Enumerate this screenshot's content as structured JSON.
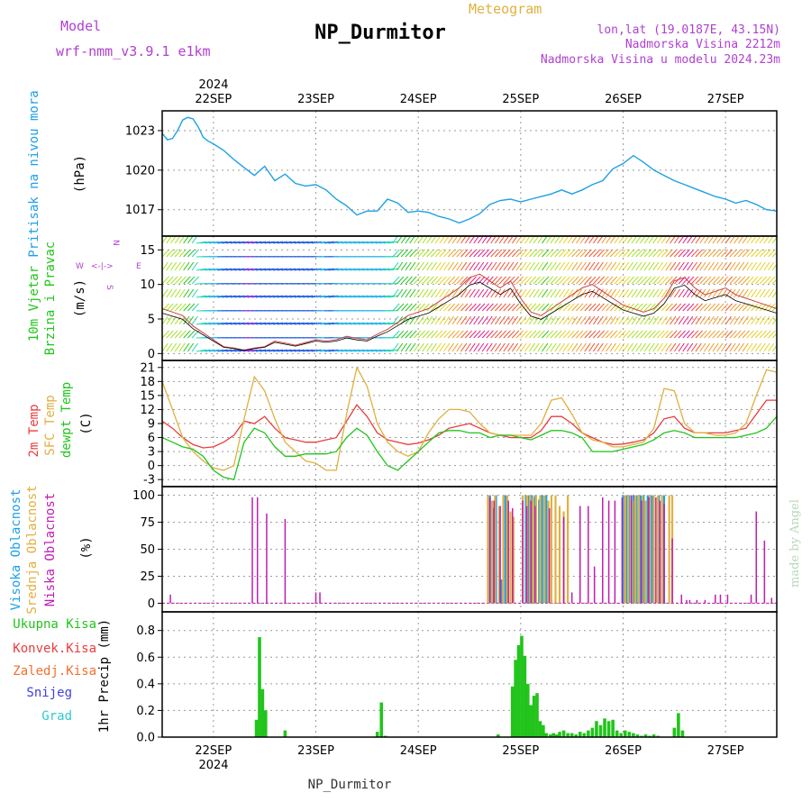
{
  "header": {
    "model_label": "Model",
    "model_name": "wrf-nmm_v3.9.1 e1km",
    "station": "NP_Durmitor",
    "meteogram": "Meteogram",
    "lonlat": "lon,lat (19.0187E, 43.15N)",
    "altitude": "Nadmorska Visina 2212m",
    "altitude_model": "Nadmorska Visina u modelu 2024.23m",
    "footer_station": "NP_Durmitor",
    "watermark": "made by Angel",
    "year": "2024",
    "colors": {
      "purple": "#b040d0",
      "gold": "#e0b040"
    }
  },
  "chart_data": [
    {
      "type": "line",
      "panel": "pressure",
      "ylabel": "Pritisak na nivou mora",
      "unit": "(hPa)",
      "x_categories": [
        "22SEP",
        "23SEP",
        "24SEP",
        "25SEP",
        "26SEP",
        "27SEP"
      ],
      "x_range": [
        -0.5,
        5.5
      ],
      "ylim": [
        1015.0,
        1024.5
      ],
      "yticks": [
        1017,
        1020,
        1023
      ],
      "series": [
        {
          "color": "#1ea0e6",
          "x": [
            -0.5,
            -0.45,
            -0.4,
            -0.35,
            -0.3,
            -0.25,
            -0.2,
            -0.15,
            -0.1,
            -0.05,
            0.0,
            0.1,
            0.2,
            0.3,
            0.4,
            0.5,
            0.6,
            0.7,
            0.8,
            0.9,
            1.0,
            1.1,
            1.2,
            1.3,
            1.4,
            1.5,
            1.6,
            1.7,
            1.8,
            1.9,
            2.0,
            2.1,
            2.2,
            2.3,
            2.4,
            2.5,
            2.6,
            2.7,
            2.8,
            2.9,
            3.0,
            3.1,
            3.2,
            3.3,
            3.4,
            3.5,
            3.6,
            3.7,
            3.8,
            3.9,
            4.0,
            4.1,
            4.2,
            4.3,
            4.4,
            4.5,
            4.6,
            4.7,
            4.8,
            4.9,
            5.0,
            5.1,
            5.2,
            5.3,
            5.4,
            5.5
          ],
          "values": [
            1022.8,
            1022.3,
            1022.4,
            1023.0,
            1023.8,
            1024.0,
            1023.9,
            1023.3,
            1022.5,
            1022.2,
            1022.0,
            1021.5,
            1020.8,
            1020.2,
            1019.6,
            1020.3,
            1019.2,
            1019.7,
            1019.0,
            1018.8,
            1018.9,
            1018.5,
            1017.8,
            1017.3,
            1016.6,
            1016.9,
            1016.9,
            1017.8,
            1017.5,
            1016.8,
            1016.9,
            1016.8,
            1016.5,
            1016.3,
            1016.0,
            1016.3,
            1016.7,
            1017.4,
            1017.7,
            1017.8,
            1017.6,
            1017.8,
            1018.0,
            1018.2,
            1018.5,
            1018.2,
            1018.5,
            1018.9,
            1019.2,
            1020.1,
            1020.5,
            1021.1,
            1020.6,
            1020.0,
            1019.6,
            1019.2,
            1018.9,
            1018.6,
            1018.3,
            1018.0,
            1017.8,
            1017.5,
            1017.7,
            1017.4,
            1017.0,
            1016.9
          ]
        }
      ]
    },
    {
      "type": "line",
      "panel": "wind",
      "ylabel": "10m Vjetar Brzina i Pravac",
      "unit": "(m/s)",
      "compass": [
        "N",
        "E",
        "S",
        "W"
      ],
      "ylim": [
        -1,
        17
      ],
      "yticks": [
        0,
        5,
        10,
        15
      ],
      "series": [
        {
          "name": "speed",
          "color": "#e05050",
          "x": [
            -0.5,
            -0.4,
            -0.3,
            -0.2,
            -0.1,
            0.0,
            0.1,
            0.2,
            0.3,
            0.4,
            0.5,
            0.6,
            0.7,
            0.8,
            0.9,
            1.0,
            1.1,
            1.2,
            1.3,
            1.4,
            1.5,
            1.6,
            1.7,
            1.8,
            1.9,
            2.0,
            2.1,
            2.2,
            2.3,
            2.4,
            2.5,
            2.6,
            2.7,
            2.8,
            2.9,
            3.0,
            3.1,
            3.2,
            3.3,
            3.4,
            3.5,
            3.6,
            3.7,
            3.8,
            3.9,
            4.0,
            4.1,
            4.2,
            4.3,
            4.4,
            4.5,
            4.6,
            4.7,
            4.8,
            4.9,
            5.0,
            5.1,
            5.2,
            5.3,
            5.4,
            5.5
          ],
          "values": [
            6.5,
            6.0,
            5.5,
            4.0,
            3.0,
            2.0,
            1.0,
            0.8,
            0.5,
            0.8,
            1.0,
            1.8,
            1.5,
            1.2,
            1.6,
            2.0,
            1.8,
            2.0,
            2.5,
            2.2,
            2.0,
            2.8,
            3.5,
            4.5,
            5.5,
            6.0,
            6.5,
            7.5,
            8.5,
            9.5,
            11.0,
            11.5,
            10.5,
            9.5,
            10.5,
            8.0,
            6.0,
            5.5,
            6.5,
            7.5,
            8.5,
            9.5,
            10.0,
            9.0,
            8.0,
            7.0,
            6.5,
            6.0,
            6.5,
            8.0,
            10.5,
            11.0,
            9.5,
            8.5,
            9.0,
            9.5,
            8.5,
            8.0,
            7.5,
            7.0,
            6.5
          ]
        }
      ]
    },
    {
      "type": "line",
      "panel": "temperature",
      "ylabel": "2m Temp / SFC Temp / dewpt Temp",
      "unit": "(C)",
      "ylim": [
        -4.5,
        22.5
      ],
      "yticks": [
        -3,
        0,
        3,
        6,
        9,
        12,
        15,
        18,
        21
      ],
      "x": [
        -0.5,
        -0.4,
        -0.3,
        -0.2,
        -0.1,
        0.0,
        0.1,
        0.2,
        0.3,
        0.4,
        0.5,
        0.6,
        0.7,
        0.8,
        0.9,
        1.0,
        1.1,
        1.2,
        1.3,
        1.4,
        1.5,
        1.6,
        1.7,
        1.8,
        1.9,
        2.0,
        2.1,
        2.2,
        2.3,
        2.4,
        2.5,
        2.6,
        2.7,
        2.8,
        2.9,
        3.0,
        3.1,
        3.2,
        3.3,
        3.4,
        3.5,
        3.6,
        3.7,
        3.8,
        3.9,
        4.0,
        4.1,
        4.2,
        4.3,
        4.4,
        4.5,
        4.6,
        4.7,
        4.8,
        4.9,
        5.0,
        5.1,
        5.2,
        5.3,
        5.4,
        5.5
      ],
      "series": [
        {
          "name": "2m Temp",
          "color": "#e83c3c",
          "values": [
            9.5,
            8.0,
            6.0,
            4.5,
            3.8,
            4.0,
            5.0,
            6.5,
            9.5,
            9.0,
            10.5,
            8.0,
            6.0,
            5.5,
            5.0,
            5.0,
            5.5,
            6.0,
            9.5,
            13.0,
            10.5,
            7.0,
            5.5,
            5.0,
            4.5,
            4.8,
            5.5,
            6.5,
            8.0,
            8.5,
            9.0,
            8.0,
            7.0,
            6.5,
            6.0,
            6.0,
            6.0,
            7.5,
            10.5,
            10.5,
            9.0,
            7.0,
            6.0,
            5.0,
            4.5,
            4.6,
            5.0,
            5.5,
            7.0,
            10.0,
            10.5,
            8.0,
            7.0,
            7.0,
            7.0,
            7.0,
            7.5,
            8.0,
            11.0,
            14.0,
            14.0
          ]
        },
        {
          "name": "SFC Temp",
          "color": "#e0b040",
          "values": [
            18.0,
            12.0,
            6.0,
            3.0,
            1.0,
            -0.5,
            -1.0,
            0.0,
            10.0,
            19.0,
            16.0,
            10.0,
            5.0,
            3.0,
            1.0,
            0.5,
            -1.0,
            -1.0,
            11.0,
            21.0,
            17.0,
            9.0,
            5.0,
            3.0,
            2.0,
            3.0,
            7.0,
            10.0,
            12.0,
            12.0,
            11.5,
            9.0,
            7.0,
            6.5,
            6.5,
            6.5,
            6.5,
            9.0,
            14.0,
            14.5,
            11.0,
            7.0,
            5.5,
            5.0,
            4.0,
            4.0,
            4.5,
            5.0,
            8.0,
            16.5,
            16.0,
            9.0,
            7.0,
            7.0,
            6.5,
            6.5,
            7.0,
            9.0,
            15.0,
            20.5,
            20.0
          ]
        },
        {
          "name": "dewpt Temp",
          "color": "#22c41c",
          "values": [
            6.0,
            5.0,
            4.0,
            3.5,
            2.0,
            -1.0,
            -2.5,
            -3.0,
            5.0,
            8.0,
            7.0,
            4.0,
            2.0,
            2.0,
            2.5,
            2.5,
            2.5,
            3.0,
            6.0,
            8.0,
            6.5,
            3.0,
            0.0,
            -1.0,
            1.0,
            3.0,
            5.0,
            7.0,
            7.5,
            7.5,
            7.0,
            7.0,
            6.0,
            6.5,
            6.5,
            6.0,
            5.5,
            6.5,
            7.5,
            7.5,
            7.0,
            6.0,
            3.0,
            3.0,
            3.0,
            3.5,
            4.0,
            4.5,
            5.5,
            7.0,
            7.5,
            7.0,
            6.0,
            6.0,
            6.0,
            6.0,
            6.0,
            6.5,
            7.0,
            8.0,
            10.5
          ]
        }
      ]
    },
    {
      "type": "bar",
      "panel": "cloud",
      "ylabel": "Visoka Oblacnost / Srednja Oblacnost / Niska Oblacnost",
      "unit": "(%)",
      "ylim": [
        -8,
        108
      ],
      "yticks": [
        0,
        25,
        50,
        75,
        100
      ],
      "series": [
        {
          "name": "Visoka Oblacnost",
          "color": "#1ea0e6",
          "x": [
            2.7,
            2.73,
            2.76,
            2.81,
            2.85,
            3.05,
            3.08,
            3.11,
            3.14,
            3.18,
            3.21,
            3.25,
            4.0,
            4.03,
            4.06,
            4.1,
            4.13,
            4.17,
            4.2,
            4.24,
            4.28,
            4.35,
            4.4
          ],
          "values": [
            100,
            88,
            100,
            22,
            100,
            100,
            100,
            100,
            100,
            96,
            100,
            100,
            100,
            100,
            100,
            100,
            100,
            100,
            100,
            100,
            100,
            100,
            100
          ]
        },
        {
          "name": "Srednja Oblacnost",
          "color": "#e0b040",
          "x": [
            2.68,
            2.72,
            2.75,
            2.79,
            2.83,
            2.87,
            2.9,
            2.93,
            3.02,
            3.06,
            3.09,
            3.12,
            3.15,
            3.19,
            3.23,
            3.27,
            3.3,
            3.34,
            3.38,
            3.42,
            3.46,
            4.02,
            4.05,
            4.09,
            4.12,
            4.15,
            4.19,
            4.22,
            4.26,
            4.3,
            4.34,
            4.38,
            4.45,
            4.48
          ],
          "values": [
            100,
            95,
            100,
            90,
            100,
            100,
            85,
            80,
            100,
            100,
            100,
            98,
            100,
            100,
            100,
            95,
            100,
            100,
            90,
            85,
            100,
            100,
            100,
            95,
            100,
            100,
            100,
            95,
            100,
            100,
            100,
            100,
            100,
            100
          ]
        },
        {
          "name": "Niska Oblacnost",
          "color": "#c01cb0",
          "x": [
            -0.42,
            0.38,
            0.43,
            0.52,
            0.7,
            1.0,
            1.04,
            2.7,
            2.74,
            2.8,
            2.88,
            2.92,
            3.02,
            3.06,
            3.1,
            3.14,
            3.28,
            3.42,
            3.5,
            3.58,
            3.66,
            3.72,
            3.8,
            3.86,
            3.92,
            3.99,
            4.08,
            4.18,
            4.25,
            4.32,
            4.36,
            4.4,
            4.48,
            4.57,
            4.62,
            4.65,
            4.72,
            4.8,
            4.9,
            4.95,
            5.02,
            5.25,
            5.3,
            5.38,
            5.45
          ],
          "values": [
            8,
            98,
            98,
            83,
            78,
            10,
            10,
            98,
            95,
            90,
            95,
            88,
            95,
            90,
            95,
            90,
            88,
            80,
            10,
            90,
            90,
            34,
            98,
            95,
            95,
            98,
            100,
            95,
            98,
            98,
            95,
            92,
            60,
            8,
            3,
            3,
            3,
            3,
            8,
            8,
            8,
            8,
            85,
            58,
            5
          ]
        }
      ]
    },
    {
      "type": "bar",
      "panel": "precip",
      "ylabel": "1hr Precip",
      "unit": "(mm)",
      "legend": [
        "Ukupna Kisa",
        "Konvek.Kisa",
        "Zaledj.Kisa",
        "Snijeg",
        "Grad"
      ],
      "legend_colors": [
        "#22c41c",
        "#e83c3c",
        "#f07030",
        "#4040e0",
        "#30c8c8"
      ],
      "ylim": [
        0,
        0.94
      ],
      "yticks": [
        0,
        0.2,
        0.4,
        0.6,
        0.8
      ],
      "x_bottom": [
        "22SEP",
        "23SEP",
        "24SEP",
        "25SEP",
        "26SEP",
        "27SEP"
      ],
      "series": [
        {
          "name": "Ukupna Kisa",
          "color": "#22c41c",
          "x": [
            0.42,
            0.45,
            0.48,
            0.51,
            0.7,
            1.6,
            1.64,
            1.68,
            2.78,
            2.92,
            2.95,
            2.98,
            3.01,
            3.04,
            3.07,
            3.1,
            3.13,
            3.16,
            3.19,
            3.22,
            3.25,
            3.29,
            3.32,
            3.35,
            3.38,
            3.42,
            3.46,
            3.5,
            3.54,
            3.58,
            3.62,
            3.66,
            3.7,
            3.74,
            3.78,
            3.82,
            3.86,
            3.9,
            3.94,
            3.98,
            4.02,
            4.06,
            4.1,
            4.14,
            4.18,
            4.22,
            4.26,
            4.3,
            4.34,
            4.5,
            4.54,
            4.58
          ],
          "values": [
            0.13,
            0.75,
            0.36,
            0.2,
            0.05,
            0.04,
            0.26,
            0.01,
            0.02,
            0.38,
            0.58,
            0.69,
            0.76,
            0.61,
            0.4,
            0.24,
            0.31,
            0.33,
            0.12,
            0.09,
            0.03,
            0.02,
            0.03,
            0.02,
            0.04,
            0.05,
            0.03,
            0.03,
            0.02,
            0.04,
            0.03,
            0.05,
            0.07,
            0.12,
            0.09,
            0.14,
            0.12,
            0.13,
            0.05,
            0.03,
            0.05,
            0.04,
            0.03,
            0.02,
            0.01,
            0.02,
            0.01,
            0.02,
            0.01,
            0.07,
            0.18,
            0.05
          ]
        }
      ]
    }
  ]
}
